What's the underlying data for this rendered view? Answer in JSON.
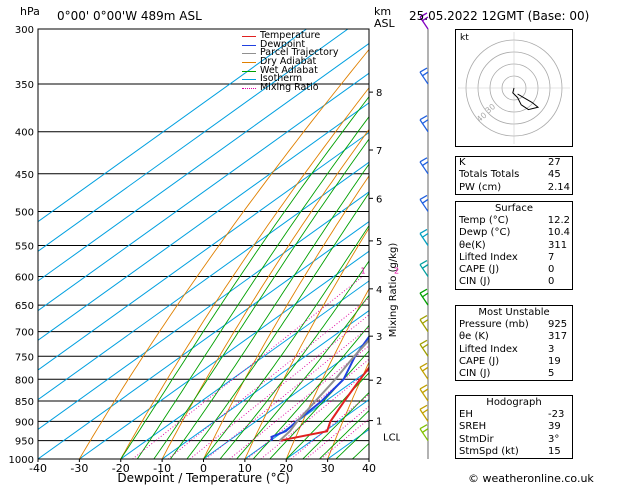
{
  "header": {
    "location": "0°00' 0°00'W 489m ASL",
    "datetime": "25.05.2022 12GMT (Base: 00)",
    "hpa_label": "hPa",
    "km_label": "km",
    "asl_label": "ASL"
  },
  "legend": [
    {
      "label": "Temperature",
      "color": "#e02020",
      "style": "solid"
    },
    {
      "label": "Dewpoint",
      "color": "#2040e0",
      "style": "solid"
    },
    {
      "label": "Parcel Trajectory",
      "color": "#909090",
      "style": "solid"
    },
    {
      "label": "Dry Adiabat",
      "color": "#e08000",
      "style": "solid"
    },
    {
      "label": "Wet Adiabat",
      "color": "#00a000",
      "style": "solid"
    },
    {
      "label": "Isotherm",
      "color": "#00a0e0",
      "style": "solid"
    },
    {
      "label": "Mixing Ratio",
      "color": "#e000a0",
      "style": "dotted"
    }
  ],
  "chart_data": {
    "type": "line",
    "title": "",
    "xlabel": "Dewpoint / Temperature (°C)",
    "ylabel": "",
    "right_axis_label": "Mixing Ratio (g/kg)",
    "xlim": [
      -40,
      40
    ],
    "ylim_hpa": [
      1000,
      300
    ],
    "x_ticks": [
      "-40",
      "-30",
      "-20",
      "-10",
      "0",
      "10",
      "20",
      "30",
      "40"
    ],
    "pressure_ticks": [
      "300",
      "350",
      "400",
      "450",
      "500",
      "550",
      "600",
      "650",
      "700",
      "750",
      "800",
      "850",
      "900",
      "950",
      "1000"
    ],
    "km_ticks": [
      {
        "label": "8",
        "p": 358
      },
      {
        "label": "7",
        "p": 421
      },
      {
        "label": "6",
        "p": 482
      },
      {
        "label": "5",
        "p": 543
      },
      {
        "label": "4",
        "p": 621
      },
      {
        "label": "3",
        "p": 709
      },
      {
        "label": "2",
        "p": 802
      },
      {
        "label": "1",
        "p": 898
      }
    ],
    "lcl": {
      "label": "LCL",
      "p": 939
    },
    "mixing_ratio_labels": [
      "1",
      "2",
      "3",
      "4",
      "6",
      "8",
      "10",
      "16",
      "20",
      "25"
    ],
    "series": [
      {
        "name": "Temperature",
        "points": [
          [
            950,
            12.2
          ],
          [
            925,
            20.5
          ],
          [
            900,
            18
          ],
          [
            850,
            14.5
          ],
          [
            800,
            11
          ],
          [
            750,
            7.5
          ],
          [
            700,
            3
          ],
          [
            650,
            0
          ],
          [
            600,
            -3
          ],
          [
            550,
            -7
          ],
          [
            500,
            -12
          ],
          [
            450,
            -17.5
          ],
          [
            400,
            -24
          ],
          [
            350,
            -31
          ],
          [
            300,
            -41
          ]
        ]
      },
      {
        "name": "Dewpoint",
        "points": [
          [
            950,
            10.4
          ],
          [
            940,
            9
          ],
          [
            925,
            10.5
          ],
          [
            900,
            9.8
          ],
          [
            850,
            9
          ],
          [
            800,
            7
          ],
          [
            750,
            2
          ],
          [
            700,
            -2
          ],
          [
            690,
            -2
          ],
          [
            680,
            -5
          ],
          [
            660,
            -4
          ],
          [
            640,
            -2
          ],
          [
            620,
            -3
          ],
          [
            600,
            -1
          ],
          [
            570,
            -8
          ],
          [
            550,
            -4
          ],
          [
            500,
            -16
          ],
          [
            450,
            -12
          ],
          [
            420,
            -19
          ],
          [
            400,
            -20
          ],
          [
            375,
            -23
          ],
          [
            360,
            -21
          ],
          [
            350,
            -33
          ],
          [
            320,
            -35
          ],
          [
            300,
            -33
          ]
        ]
      },
      {
        "name": "Parcel Trajectory",
        "points": [
          [
            950,
            12.2
          ],
          [
            925,
            11.5
          ],
          [
            900,
            10
          ],
          [
            850,
            7.5
          ],
          [
            800,
            5
          ],
          [
            750,
            1.8
          ],
          [
            700,
            -1
          ],
          [
            650,
            -4
          ],
          [
            600,
            -8
          ],
          [
            550,
            -12
          ],
          [
            500,
            -17
          ],
          [
            450,
            -22.5
          ],
          [
            400,
            -29
          ],
          [
            350,
            -36.5
          ],
          [
            300,
            -45
          ]
        ]
      }
    ]
  },
  "hodograph": {
    "label": "kt",
    "rings": [
      "10",
      "20",
      "30",
      "40"
    ],
    "points_kt": [
      [
        0,
        0
      ],
      [
        -1,
        -4
      ],
      [
        3,
        -8
      ],
      [
        6,
        -14
      ],
      [
        12,
        -18
      ],
      [
        20,
        -16
      ],
      [
        15,
        -12
      ],
      [
        8,
        -8
      ],
      [
        3,
        -5
      ]
    ]
  },
  "indices": {
    "k_label": "K",
    "k": "27",
    "tt_label": "Totals Totals",
    "tt": "45",
    "pw_label": "PW (cm)",
    "pw": "2.14"
  },
  "surface": {
    "title": "Surface",
    "rows": [
      {
        "label": "Temp (°C)",
        "value": "12.2"
      },
      {
        "label": "Dewp (°C)",
        "value": "10.4"
      },
      {
        "label": "θe(K)",
        "value": "311"
      },
      {
        "label": "Lifted Index",
        "value": "7"
      },
      {
        "label": "CAPE (J)",
        "value": "0"
      },
      {
        "label": "CIN (J)",
        "value": "0"
      }
    ]
  },
  "most_unstable": {
    "title": "Most Unstable",
    "rows": [
      {
        "label": "Pressure (mb)",
        "value": "925"
      },
      {
        "label": "θe (K)",
        "value": "317"
      },
      {
        "label": "Lifted Index",
        "value": "3"
      },
      {
        "label": "CAPE (J)",
        "value": "19"
      },
      {
        "label": "CIN (J)",
        "value": "5"
      }
    ]
  },
  "hodo_table": {
    "title": "Hodograph",
    "rows": [
      {
        "label": "EH",
        "value": "-23"
      },
      {
        "label": "SREH",
        "value": "39"
      },
      {
        "label": "StmDir",
        "value": "3°"
      },
      {
        "label": "StmSpd (kt)",
        "value": "15"
      }
    ]
  },
  "footer": {
    "copyright": "© weatheronline.co.uk"
  },
  "colors": {
    "temperature": "#e02020",
    "dewpoint": "#2040e0",
    "parcel": "#909090",
    "dry": "#e08000",
    "wet": "#00a000",
    "isotherm": "#00a0e0",
    "mixing": "#e000a0"
  }
}
